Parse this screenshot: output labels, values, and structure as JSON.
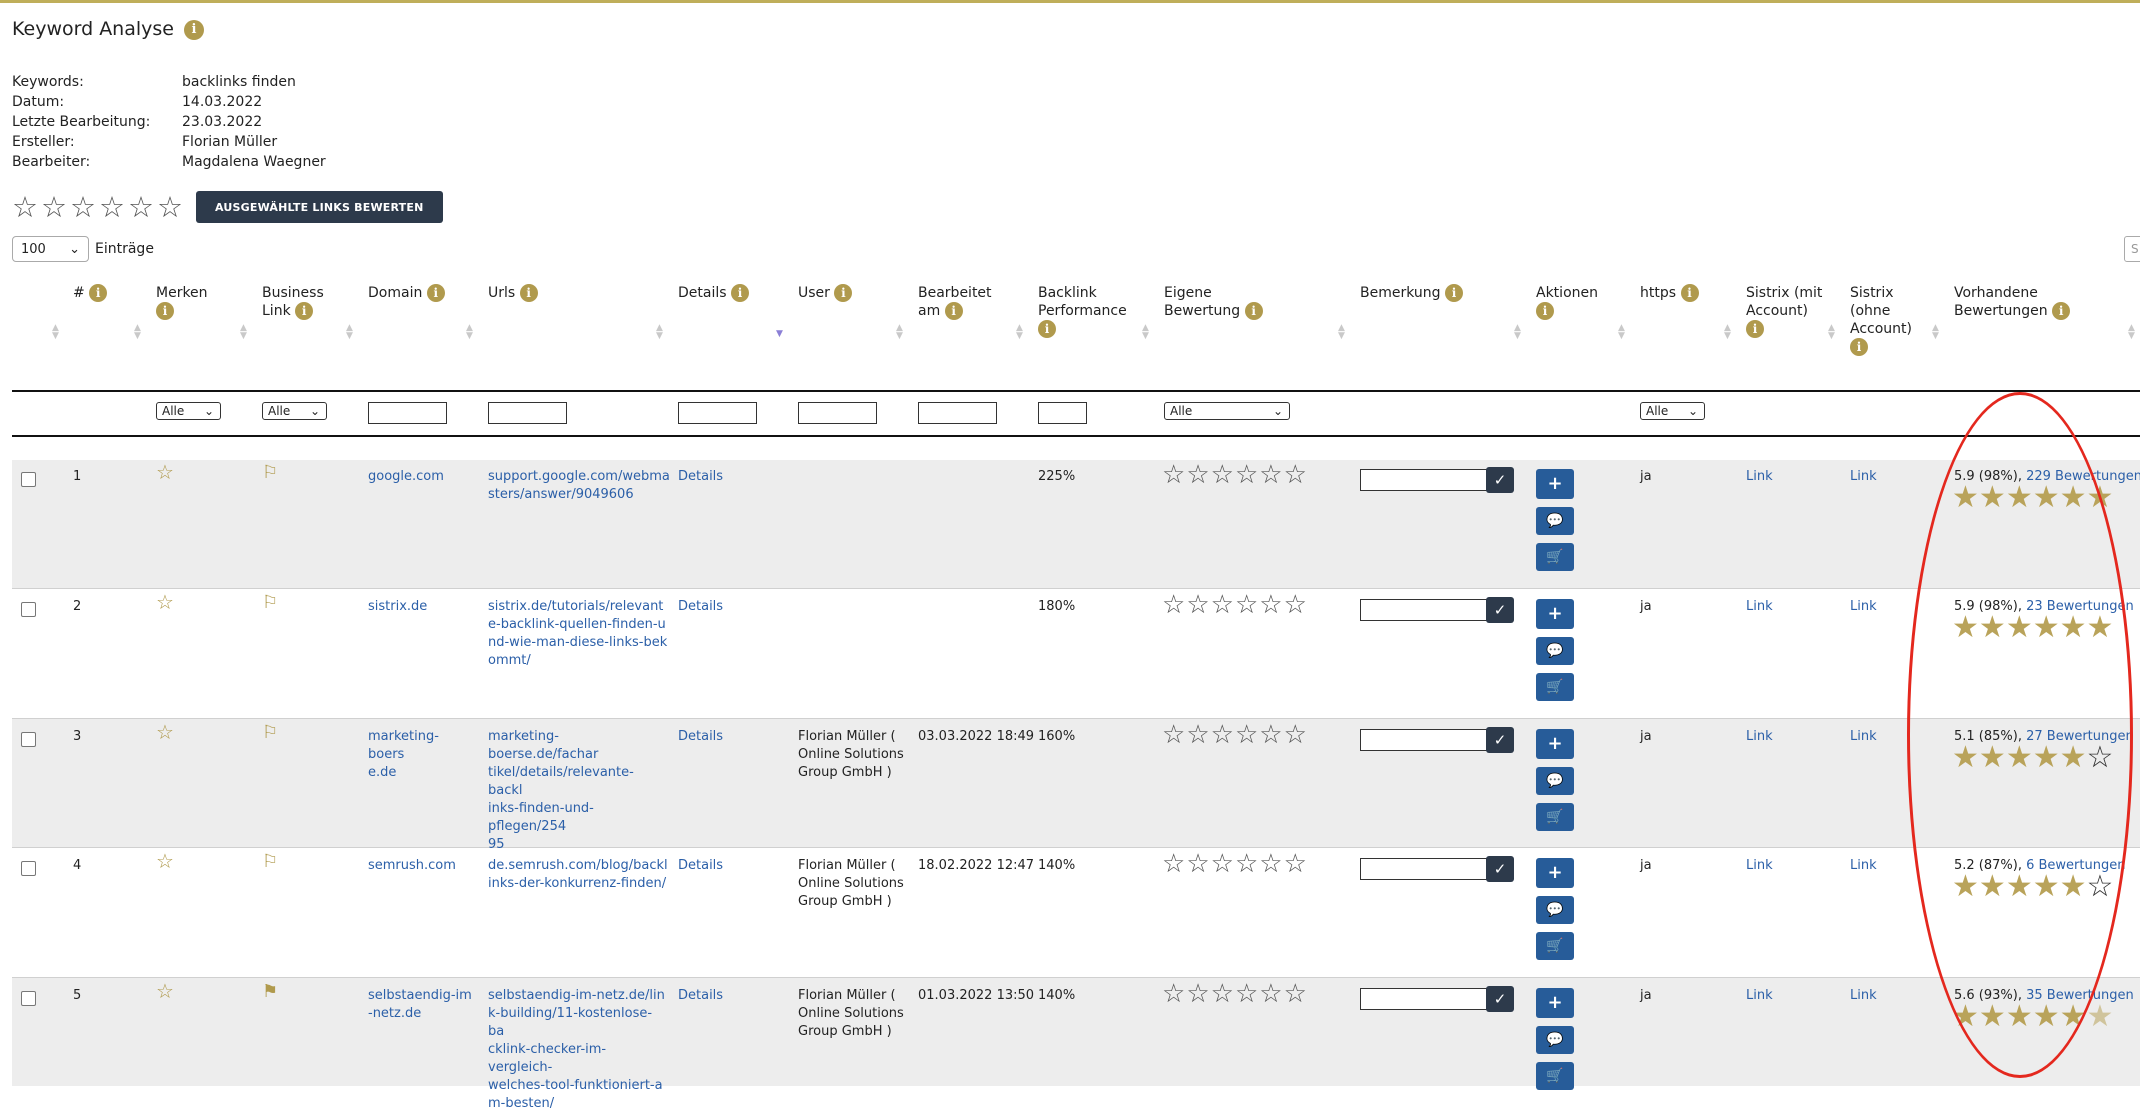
{
  "page": {
    "title": "Keyword Analyse"
  },
  "meta": [
    {
      "key": "Keywords:",
      "value": "backlinks finden"
    },
    {
      "key": "Datum:",
      "value": "14.03.2022"
    },
    {
      "key": "Letzte Bearbeitung:",
      "value": "23.03.2022"
    },
    {
      "key": "Ersteller:",
      "value": "Florian Müller"
    },
    {
      "key": "Bearbeiter:",
      "value": "Magdalena Waegner"
    }
  ],
  "bulk": {
    "button_label": "AUSGEWÄHLTE LINKS BEWERTEN"
  },
  "entries": {
    "value": "100",
    "label": "Einträge"
  },
  "search": {
    "placeholder": "S"
  },
  "headers": {
    "num": "#",
    "merken": "Merken",
    "business": [
      "Business",
      "Link"
    ],
    "domain": "Domain",
    "urls": "Urls",
    "details": "Details",
    "user": "User",
    "bearbeitet": [
      "Bearbeitet",
      "am"
    ],
    "backlink": [
      "Backlink",
      "Performance"
    ],
    "eigene": [
      "Eigene",
      "Bewertung"
    ],
    "bemerkung": "Bemerkung",
    "aktionen": "Aktionen",
    "https": "https",
    "sistrix_mit": [
      "Sistrix (mit",
      "Account)"
    ],
    "sistrix_ohne": [
      "Sistrix",
      "(ohne",
      "Account)"
    ],
    "vorhandene": [
      "Vorhandene",
      "Bewertungen"
    ]
  },
  "filters": {
    "merken": "Alle",
    "business": "Alle",
    "eigene": "Alle",
    "https": "Alle"
  },
  "rows": [
    {
      "num": "1",
      "domain": [
        "google.com"
      ],
      "url": [
        "support.google.com/webma",
        "sters/answer/9049606"
      ],
      "details": "Details",
      "user": [],
      "date": "",
      "perf": "225%",
      "https": "ja",
      "s1": "Link",
      "s2": "Link",
      "score": "5.9 (98%), ",
      "reviews": "229 Bewertungen",
      "stars": 6.0,
      "flag_filled": false
    },
    {
      "num": "2",
      "domain": [
        "sistrix.de"
      ],
      "url": [
        "sistrix.de/tutorials/relevant",
        "e-backlink-quellen-finden-u",
        "nd-wie-man-diese-links-bek",
        "ommt/"
      ],
      "details": "Details",
      "user": [],
      "date": "",
      "perf": "180%",
      "https": "ja",
      "s1": "Link",
      "s2": "Link",
      "score": "5.9 (98%), ",
      "reviews": "23 Bewertungen",
      "stars": 6.0,
      "flag_filled": false
    },
    {
      "num": "3",
      "domain": [
        "marketing-boers",
        "e.de"
      ],
      "url": [
        "marketing-boerse.de/fachar",
        "tikel/details/relevante-backl",
        "inks-finden-und-pflegen/254",
        "95"
      ],
      "details": "Details",
      "user": [
        "Florian Müller (",
        "Online Solutions",
        "Group GmbH )"
      ],
      "date": "03.03.2022 18:49",
      "perf": "160%",
      "https": "ja",
      "s1": "Link",
      "s2": "Link",
      "score": "5.1 (85%), ",
      "reviews": "27 Bewertungen",
      "stars": 5.0,
      "flag_filled": false
    },
    {
      "num": "4",
      "domain": [
        "semrush.com"
      ],
      "url": [
        "de.semrush.com/blog/backl",
        "inks-der-konkurrenz-finden/"
      ],
      "details": "Details",
      "user": [
        "Florian Müller (",
        "Online Solutions",
        "Group GmbH )"
      ],
      "date": "18.02.2022 12:47",
      "perf": "140%",
      "https": "ja",
      "s1": "Link",
      "s2": "Link",
      "score": "5.2 (87%), ",
      "reviews": "6 Bewertungen",
      "stars": 5.0,
      "flag_filled": false
    },
    {
      "num": "5",
      "domain": [
        "selbstaendig-im",
        "-netz.de"
      ],
      "url": [
        "selbstaendig-im-netz.de/lin",
        "k-building/11-kostenlose-ba",
        "cklink-checker-im-vergleich-",
        "welches-tool-funktioniert-a",
        "m-besten/"
      ],
      "details": "Details",
      "user": [
        "Florian Müller (",
        "Online Solutions",
        "Group GmbH )"
      ],
      "date": "01.03.2022 13:50",
      "perf": "140%",
      "https": "ja",
      "s1": "Link",
      "s2": "Link",
      "score": "5.6 (93%), ",
      "reviews": "35 Bewertungen",
      "stars": 5.5,
      "flag_filled": true
    }
  ]
}
